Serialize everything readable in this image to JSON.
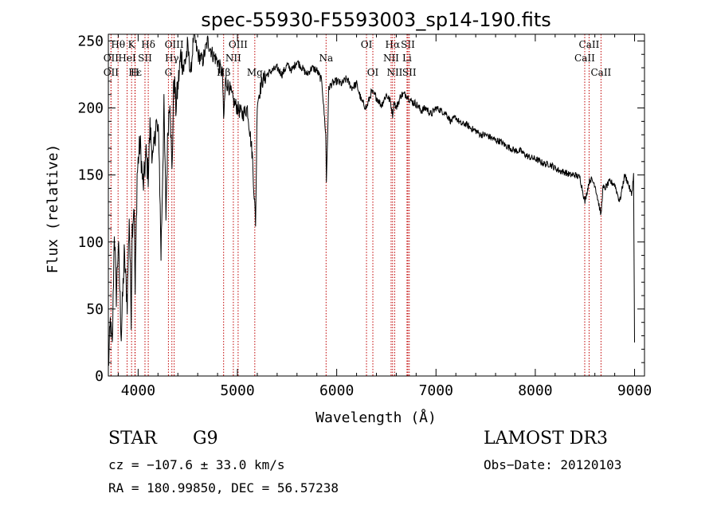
{
  "chart_data": {
    "type": "line",
    "title": "spec-55930-F5593003_sp14-190.fits",
    "xlabel": "Wavelength (Å)",
    "ylabel": "Flux (relative)",
    "xlim": [
      3700,
      9100
    ],
    "ylim": [
      0,
      255
    ],
    "xticks": [
      4000,
      5000,
      6000,
      7000,
      8000,
      9000
    ],
    "yticks": [
      0,
      50,
      100,
      150,
      200,
      250
    ],
    "grid": false,
    "line_color": "#000000",
    "marker_color": "#c00000",
    "series": [
      {
        "name": "flux",
        "x": [
          3700,
          3720,
          3740,
          3760,
          3780,
          3800,
          3830,
          3860,
          3890,
          3910,
          3930,
          3940,
          3960,
          3970,
          3990,
          4000,
          4020,
          4050,
          4080,
          4101,
          4120,
          4150,
          4180,
          4210,
          4230,
          4260,
          4280,
          4300,
          4320,
          4340,
          4360,
          4380,
          4400,
          4430,
          4460,
          4500,
          4530,
          4560,
          4600,
          4650,
          4700,
          4750,
          4800,
          4850,
          4861,
          4880,
          4920,
          4960,
          5000,
          5050,
          5100,
          5150,
          5172,
          5183,
          5200,
          5250,
          5300,
          5350,
          5400,
          5450,
          5500,
          5550,
          5600,
          5650,
          5700,
          5750,
          5800,
          5850,
          5890,
          5896,
          5920,
          5950,
          6000,
          6050,
          6100,
          6150,
          6200,
          6250,
          6300,
          6350,
          6400,
          6450,
          6500,
          6540,
          6563,
          6580,
          6600,
          6650,
          6700,
          6750,
          6800,
          6850,
          6900,
          6950,
          7000,
          7050,
          7100,
          7150,
          7200,
          7250,
          7300,
          7350,
          7400,
          7450,
          7500,
          7550,
          7600,
          7650,
          7700,
          7750,
          7800,
          7850,
          7900,
          7950,
          8000,
          8050,
          8100,
          8150,
          8200,
          8250,
          8300,
          8350,
          8400,
          8450,
          8500,
          8542,
          8560,
          8600,
          8662,
          8680,
          8700,
          8750,
          8800,
          8850,
          8900,
          8930,
          8950,
          8970,
          8990,
          9000
        ],
        "y": [
          5,
          40,
          20,
          110,
          60,
          100,
          30,
          90,
          55,
          120,
          45,
          110,
          130,
          60,
          150,
          160,
          175,
          140,
          165,
          150,
          185,
          160,
          190,
          175,
          90,
          200,
          120,
          185,
          210,
          150,
          225,
          200,
          215,
          240,
          230,
          245,
          225,
          255,
          240,
          235,
          250,
          240,
          235,
          225,
          190,
          220,
          215,
          205,
          200,
          195,
          200,
          165,
          130,
          115,
          205,
          220,
          225,
          228,
          230,
          225,
          232,
          228,
          235,
          230,
          225,
          230,
          228,
          220,
          180,
          145,
          215,
          218,
          220,
          218,
          222,
          215,
          218,
          205,
          200,
          212,
          208,
          202,
          210,
          205,
          195,
          205,
          200,
          210,
          210,
          205,
          203,
          198,
          200,
          195,
          200,
          198,
          196,
          190,
          193,
          188,
          188,
          185,
          183,
          180,
          180,
          178,
          176,
          175,
          172,
          170,
          168,
          168,
          165,
          163,
          162,
          160,
          158,
          158,
          155,
          153,
          152,
          150,
          150,
          148,
          130,
          145,
          147,
          143,
          120,
          140,
          140,
          145,
          143,
          130,
          150,
          145,
          140,
          135,
          150,
          25
        ]
      }
    ],
    "line_markers": [
      {
        "label": "Hθ",
        "wl": 3798,
        "row": 0
      },
      {
        "label": "OII",
        "wl": 3727,
        "row": 1
      },
      {
        "label": "OII",
        "wl": 3727,
        "row": 2
      },
      {
        "label": "K",
        "wl": 3934,
        "row": 0
      },
      {
        "label": "Hε",
        "wl": 3970,
        "row": 2
      },
      {
        "label": "H",
        "wl": 3968,
        "row": 2
      },
      {
        "label": "HeI",
        "wl": 3889,
        "row": 1
      },
      {
        "label": "SII",
        "wl": 4069,
        "row": 1
      },
      {
        "label": "Hδ",
        "wl": 4102,
        "row": 0
      },
      {
        "label": "OIII",
        "wl": 4363,
        "row": 0
      },
      {
        "label": "Hγ",
        "wl": 4340,
        "row": 1
      },
      {
        "label": "G",
        "wl": 4305,
        "row": 2
      },
      {
        "label": "OIII",
        "wl": 5007,
        "row": 0
      },
      {
        "label": "NII",
        "wl": 4959,
        "row": 1
      },
      {
        "label": "Hβ",
        "wl": 4861,
        "row": 2
      },
      {
        "label": "Mg",
        "wl": 5175,
        "row": 2
      },
      {
        "label": "Na",
        "wl": 5893,
        "row": 1
      },
      {
        "label": "OI",
        "wl": 6300,
        "row": 0
      },
      {
        "label": "OI",
        "wl": 6364,
        "row": 2
      },
      {
        "label": "Hα",
        "wl": 6563,
        "row": 0
      },
      {
        "label": "SII",
        "wl": 6717,
        "row": 0
      },
      {
        "label": "NII",
        "wl": 6548,
        "row": 1
      },
      {
        "label": "Li",
        "wl": 6708,
        "row": 1
      },
      {
        "label": "NII",
        "wl": 6584,
        "row": 2
      },
      {
        "label": "SII",
        "wl": 6731,
        "row": 2
      },
      {
        "label": "CaII",
        "wl": 8542,
        "row": 0
      },
      {
        "label": "CaII",
        "wl": 8498,
        "row": 1
      },
      {
        "label": "CaII",
        "wl": 8662,
        "row": 2
      }
    ]
  },
  "info": {
    "object_class": "STAR",
    "subclass": "G9",
    "survey": "LAMOST DR3",
    "cz": "cz = −107.6 ± 33.0 km/s",
    "obs_date": "Obs−Date: 20120103",
    "coords": "RA = 180.99850, DEC =  56.57238"
  }
}
